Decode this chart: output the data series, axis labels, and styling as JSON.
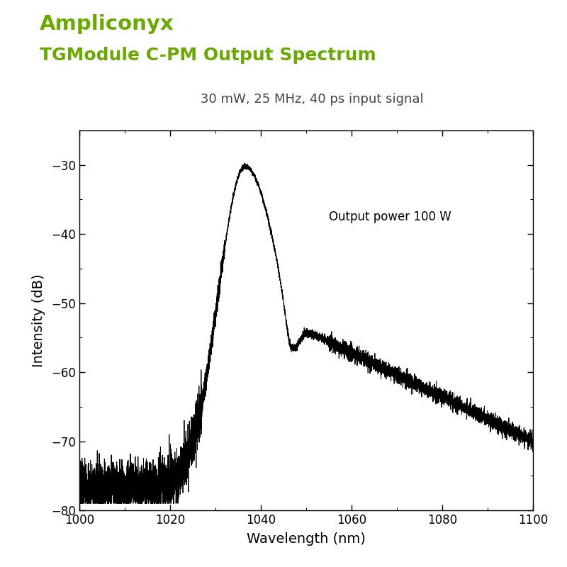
{
  "title_line1": "Ampliconyx",
  "title_line2": "TGModule C-PM Output Spectrum",
  "title_color": "#6aaa00",
  "subtitle": "30 mW, 25 MHz, 40 ps input signal",
  "subtitle_color": "#444444",
  "annotation": "Output power 100 W",
  "xlabel": "Wavelength (nm)",
  "ylabel": "Intensity (dB)",
  "xlim": [
    1000,
    1100
  ],
  "ylim": [
    -80,
    -25
  ],
  "yticks": [
    -80,
    -70,
    -60,
    -50,
    -40,
    -30
  ],
  "xticks": [
    1000,
    1020,
    1040,
    1060,
    1080,
    1100
  ],
  "peak_wavelength": 1036.5,
  "peak_value": -30.2,
  "noise_floor": -76.5,
  "background_color": "#ffffff",
  "line_color": "#000000",
  "spine_color": "#000000"
}
